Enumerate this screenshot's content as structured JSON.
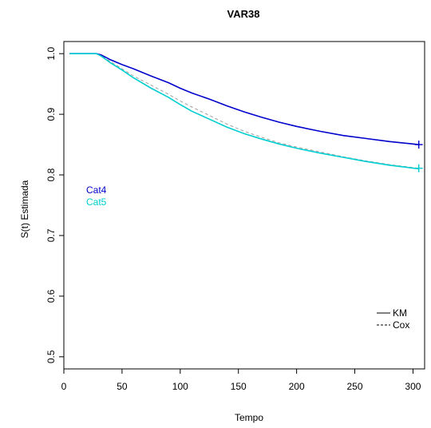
{
  "chart_data": {
    "type": "line",
    "title": "VAR38",
    "xlabel": "Tempo",
    "ylabel": "S(t) Estimada",
    "xlim": [
      0,
      310
    ],
    "ylim": [
      0.48,
      1.02
    ],
    "xticks": [
      0,
      50,
      100,
      150,
      200,
      250,
      300
    ],
    "yticks": [
      0.5,
      0.6,
      0.7,
      0.8,
      0.9,
      1.0
    ],
    "xtick_labels": [
      "0",
      "50",
      "100",
      "150",
      "200",
      "250",
      "300"
    ],
    "ytick_labels": [
      "0.5",
      "0.6",
      "0.7",
      "0.8",
      "0.9",
      "1.0"
    ],
    "grid": false,
    "series": [
      {
        "name": "Cat4",
        "kind": "KM",
        "color": "#0000cd",
        "line": "solid",
        "x": [
          5,
          28,
          32,
          40,
          50,
          60,
          75,
          90,
          100,
          110,
          125,
          140,
          155,
          170,
          185,
          200,
          220,
          240,
          260,
          280,
          305
        ],
        "y": [
          1.0,
          1.0,
          0.998,
          0.99,
          0.982,
          0.975,
          0.963,
          0.952,
          0.943,
          0.935,
          0.925,
          0.914,
          0.904,
          0.895,
          0.887,
          0.88,
          0.872,
          0.865,
          0.86,
          0.855,
          0.85
        ]
      },
      {
        "name": "Cat5",
        "kind": "KM",
        "color": "#00ced1",
        "line": "solid",
        "x": [
          5,
          28,
          32,
          40,
          50,
          60,
          75,
          90,
          100,
          110,
          125,
          140,
          155,
          170,
          185,
          200,
          220,
          240,
          260,
          280,
          305
        ],
        "y": [
          1.0,
          1.0,
          0.996,
          0.985,
          0.973,
          0.96,
          0.943,
          0.928,
          0.916,
          0.905,
          0.892,
          0.879,
          0.868,
          0.859,
          0.851,
          0.844,
          0.836,
          0.829,
          0.822,
          0.816,
          0.81
        ]
      },
      {
        "name": "Cat4",
        "kind": "Cox",
        "color": "#a0a0a0",
        "line": "dashed",
        "x": [
          5,
          28,
          32,
          40,
          50,
          60,
          75,
          90,
          100,
          110,
          125,
          140,
          155,
          170,
          185,
          200,
          220,
          240,
          260,
          280,
          305
        ],
        "y": [
          1.0,
          1.0,
          0.998,
          0.99,
          0.982,
          0.975,
          0.963,
          0.952,
          0.943,
          0.935,
          0.925,
          0.914,
          0.904,
          0.895,
          0.887,
          0.88,
          0.872,
          0.865,
          0.86,
          0.855,
          0.85
        ]
      },
      {
        "name": "Cat5",
        "kind": "Cox",
        "color": "#a0a0a0",
        "line": "dashed",
        "x": [
          5,
          28,
          32,
          40,
          50,
          60,
          75,
          90,
          100,
          110,
          125,
          140,
          155,
          170,
          185,
          200,
          220,
          240,
          260,
          280,
          305
        ],
        "y": [
          1.0,
          1.0,
          0.997,
          0.987,
          0.975,
          0.963,
          0.948,
          0.933,
          0.922,
          0.912,
          0.898,
          0.884,
          0.872,
          0.862,
          0.853,
          0.846,
          0.838,
          0.83,
          0.823,
          0.817,
          0.811
        ]
      }
    ],
    "censor_marks": [
      {
        "series": "Cat4",
        "x": 305,
        "y": 0.85,
        "color": "#0000cd"
      },
      {
        "series": "Cat5",
        "x": 305,
        "y": 0.811,
        "color": "#00ced1"
      }
    ],
    "group_labels": [
      {
        "text": "Cat4",
        "color": "#0000cd"
      },
      {
        "text": "Cat5",
        "color": "#00ced1"
      }
    ],
    "legend": {
      "placement": "bottom-right",
      "entries": [
        {
          "label": "KM",
          "line": "solid"
        },
        {
          "label": "Cox",
          "line": "dashed"
        }
      ]
    }
  }
}
